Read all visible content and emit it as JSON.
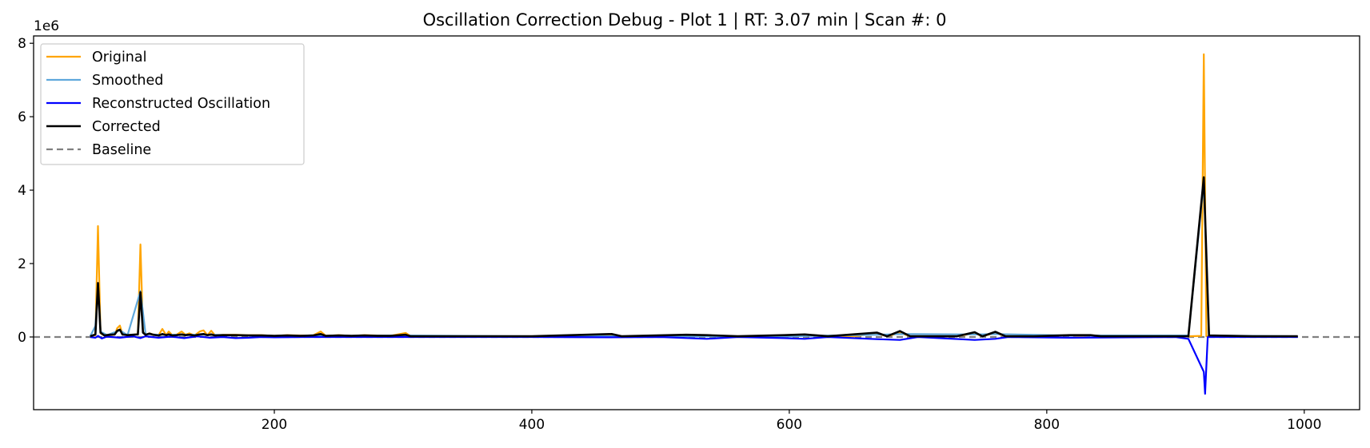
{
  "chart_data": {
    "type": "line",
    "title": "Oscillation Correction Debug - Plot 1 | RT: 3.07 min | Scan #: 0",
    "xlabel": "",
    "ylabel": "",
    "y_offset_label": "1e6",
    "xlim": [
      13,
      1043
    ],
    "ylim": [
      -1.98,
      8.2
    ],
    "x_ticks": [
      200,
      400,
      600,
      800,
      1000
    ],
    "x_tick_labels": [
      "200",
      "400",
      "600",
      "800",
      "1000"
    ],
    "y_ticks": [
      0,
      2,
      4,
      6,
      8
    ],
    "y_tick_labels": [
      "0",
      "2",
      "4",
      "6",
      "8"
    ],
    "grid": false,
    "legend_position": "upper-left",
    "baseline": 0,
    "series": [
      {
        "name": "Original",
        "color": "#ffa500",
        "style": "solid",
        "points": [
          [
            57,
            0.02
          ],
          [
            61,
            0.05
          ],
          [
            63,
            3.02
          ],
          [
            65,
            0.1
          ],
          [
            68,
            0.04
          ],
          [
            72,
            0.05
          ],
          [
            76,
            0.06
          ],
          [
            78,
            0.24
          ],
          [
            80,
            0.31
          ],
          [
            82,
            0.08
          ],
          [
            86,
            0.05
          ],
          [
            90,
            0.06
          ],
          [
            94,
            0.08
          ],
          [
            96,
            2.52
          ],
          [
            98,
            0.15
          ],
          [
            100,
            0.06
          ],
          [
            103,
            0.1
          ],
          [
            106,
            0.07
          ],
          [
            110,
            0.04
          ],
          [
            113,
            0.22
          ],
          [
            116,
            0.05
          ],
          [
            118,
            0.15
          ],
          [
            121,
            0.04
          ],
          [
            124,
            0.06
          ],
          [
            128,
            0.15
          ],
          [
            131,
            0.06
          ],
          [
            134,
            0.1
          ],
          [
            138,
            0.04
          ],
          [
            142,
            0.15
          ],
          [
            145,
            0.18
          ],
          [
            148,
            0.05
          ],
          [
            151,
            0.17
          ],
          [
            154,
            0.04
          ],
          [
            160,
            0.06
          ],
          [
            170,
            0.06
          ],
          [
            180,
            0.05
          ],
          [
            190,
            0.05
          ],
          [
            200,
            0.03
          ],
          [
            210,
            0.05
          ],
          [
            220,
            0.04
          ],
          [
            230,
            0.04
          ],
          [
            236,
            0.15
          ],
          [
            240,
            0.03
          ],
          [
            250,
            0.05
          ],
          [
            260,
            0.03
          ],
          [
            270,
            0.05
          ],
          [
            280,
            0.04
          ],
          [
            290,
            0.03
          ],
          [
            302,
            0.11
          ],
          [
            306,
            0.02
          ],
          [
            320,
            0.02
          ],
          [
            340,
            0.02
          ],
          [
            360,
            0.02
          ],
          [
            380,
            0.02
          ],
          [
            400,
            0.02
          ],
          [
            420,
            0.02
          ],
          [
            440,
            0.02
          ],
          [
            462,
            0.07
          ],
          [
            470,
            0.02
          ],
          [
            500,
            0.02
          ],
          [
            520,
            0.06
          ],
          [
            540,
            0.03
          ],
          [
            560,
            0.02
          ],
          [
            580,
            0.02
          ],
          [
            598,
            0.02
          ],
          [
            612,
            0.06
          ],
          [
            630,
            0.02
          ],
          [
            650,
            0.02
          ],
          [
            668,
            0.09
          ],
          [
            676,
            0.02
          ],
          [
            686,
            0.11
          ],
          [
            694,
            0.02
          ],
          [
            710,
            0.02
          ],
          [
            730,
            0.02
          ],
          [
            744,
            0.1
          ],
          [
            750,
            0.02
          ],
          [
            760,
            0.11
          ],
          [
            768,
            0.02
          ],
          [
            790,
            0.02
          ],
          [
            818,
            0.05
          ],
          [
            826,
            0.02
          ],
          [
            834,
            0.05
          ],
          [
            842,
            0.02
          ],
          [
            870,
            0.02
          ],
          [
            895,
            0.02
          ],
          [
            910,
            0.02
          ],
          [
            920,
            0.03
          ],
          [
            922,
            7.7
          ],
          [
            924,
            0.02
          ],
          [
            930,
            0.02
          ],
          [
            960,
            0.02
          ],
          [
            995,
            0.02
          ]
        ]
      },
      {
        "name": "Smoothed",
        "color": "#5fa8dc",
        "style": "solid",
        "points": [
          [
            57,
            0.02
          ],
          [
            61,
            0.3
          ],
          [
            63,
            1.45
          ],
          [
            65,
            0.15
          ],
          [
            70,
            0.05
          ],
          [
            80,
            0.18
          ],
          [
            86,
            0.05
          ],
          [
            96,
            1.25
          ],
          [
            100,
            0.08
          ],
          [
            110,
            0.06
          ],
          [
            130,
            0.06
          ],
          [
            150,
            0.06
          ],
          [
            170,
            0.05
          ],
          [
            200,
            0.03
          ],
          [
            240,
            0.03
          ],
          [
            300,
            0.04
          ],
          [
            400,
            0.02
          ],
          [
            500,
            0.02
          ],
          [
            600,
            0.02
          ],
          [
            668,
            0.06
          ],
          [
            686,
            0.08
          ],
          [
            744,
            0.07
          ],
          [
            760,
            0.08
          ],
          [
            818,
            0.04
          ],
          [
            910,
            0.04
          ],
          [
            922,
            4.2
          ],
          [
            926,
            0.04
          ],
          [
            995,
            0.02
          ]
        ]
      },
      {
        "name": "Reconstructed Oscillation",
        "color": "#0000ff",
        "style": "solid",
        "points": [
          [
            57,
            0.0
          ],
          [
            61,
            -0.02
          ],
          [
            63,
            0.03
          ],
          [
            66,
            -0.04
          ],
          [
            70,
            0.01
          ],
          [
            80,
            -0.02
          ],
          [
            90,
            0.02
          ],
          [
            96,
            -0.03
          ],
          [
            100,
            0.02
          ],
          [
            110,
            -0.02
          ],
          [
            120,
            0.01
          ],
          [
            130,
            -0.03
          ],
          [
            140,
            0.02
          ],
          [
            150,
            -0.02
          ],
          [
            160,
            0.0
          ],
          [
            170,
            -0.03
          ],
          [
            180,
            -0.02
          ],
          [
            190,
            0.0
          ],
          [
            200,
            -0.01
          ],
          [
            230,
            0.0
          ],
          [
            300,
            0.0
          ],
          [
            400,
            0.0
          ],
          [
            460,
            -0.01
          ],
          [
            500,
            0.0
          ],
          [
            536,
            -0.05
          ],
          [
            560,
            0.0
          ],
          [
            596,
            -0.03
          ],
          [
            612,
            -0.05
          ],
          [
            630,
            0.0
          ],
          [
            668,
            -0.06
          ],
          [
            686,
            -0.08
          ],
          [
            700,
            0.0
          ],
          [
            744,
            -0.08
          ],
          [
            760,
            -0.05
          ],
          [
            770,
            0.0
          ],
          [
            818,
            -0.02
          ],
          [
            900,
            0.0
          ],
          [
            910,
            -0.05
          ],
          [
            922,
            -0.95
          ],
          [
            923,
            -1.55
          ],
          [
            925,
            0.0
          ],
          [
            930,
            0.0
          ],
          [
            995,
            0.0
          ]
        ]
      },
      {
        "name": "Corrected",
        "color": "#000000",
        "style": "solid",
        "points": [
          [
            57,
            0.02
          ],
          [
            61,
            0.07
          ],
          [
            63,
            1.47
          ],
          [
            65,
            0.12
          ],
          [
            68,
            0.04
          ],
          [
            72,
            0.06
          ],
          [
            76,
            0.07
          ],
          [
            78,
            0.17
          ],
          [
            80,
            0.2
          ],
          [
            82,
            0.07
          ],
          [
            86,
            0.05
          ],
          [
            90,
            0.06
          ],
          [
            94,
            0.07
          ],
          [
            96,
            1.22
          ],
          [
            98,
            0.12
          ],
          [
            100,
            0.06
          ],
          [
            103,
            0.09
          ],
          [
            106,
            0.06
          ],
          [
            110,
            0.04
          ],
          [
            113,
            0.08
          ],
          [
            116,
            0.05
          ],
          [
            118,
            0.07
          ],
          [
            121,
            0.04
          ],
          [
            124,
            0.05
          ],
          [
            128,
            0.07
          ],
          [
            131,
            0.05
          ],
          [
            134,
            0.06
          ],
          [
            138,
            0.04
          ],
          [
            142,
            0.07
          ],
          [
            145,
            0.08
          ],
          [
            148,
            0.05
          ],
          [
            151,
            0.07
          ],
          [
            154,
            0.04
          ],
          [
            160,
            0.05
          ],
          [
            170,
            0.05
          ],
          [
            180,
            0.04
          ],
          [
            190,
            0.04
          ],
          [
            200,
            0.03
          ],
          [
            210,
            0.04
          ],
          [
            220,
            0.03
          ],
          [
            230,
            0.04
          ],
          [
            236,
            0.08
          ],
          [
            240,
            0.03
          ],
          [
            250,
            0.04
          ],
          [
            260,
            0.03
          ],
          [
            270,
            0.04
          ],
          [
            280,
            0.03
          ],
          [
            290,
            0.03
          ],
          [
            302,
            0.06
          ],
          [
            306,
            0.02
          ],
          [
            320,
            0.02
          ],
          [
            400,
            0.02
          ],
          [
            462,
            0.08
          ],
          [
            470,
            0.02
          ],
          [
            520,
            0.06
          ],
          [
            536,
            0.05
          ],
          [
            560,
            0.02
          ],
          [
            596,
            0.05
          ],
          [
            612,
            0.07
          ],
          [
            630,
            0.02
          ],
          [
            668,
            0.12
          ],
          [
            676,
            0.02
          ],
          [
            686,
            0.16
          ],
          [
            694,
            0.02
          ],
          [
            730,
            0.02
          ],
          [
            744,
            0.13
          ],
          [
            750,
            0.02
          ],
          [
            760,
            0.14
          ],
          [
            768,
            0.02
          ],
          [
            790,
            0.02
          ],
          [
            818,
            0.05
          ],
          [
            834,
            0.05
          ],
          [
            842,
            0.02
          ],
          [
            910,
            0.02
          ],
          [
            922,
            4.35
          ],
          [
            926,
            0.04
          ],
          [
            960,
            0.02
          ],
          [
            995,
            0.02
          ]
        ]
      }
    ],
    "baseline_series": {
      "name": "Baseline",
      "color": "#808080",
      "style": "dashed"
    }
  }
}
